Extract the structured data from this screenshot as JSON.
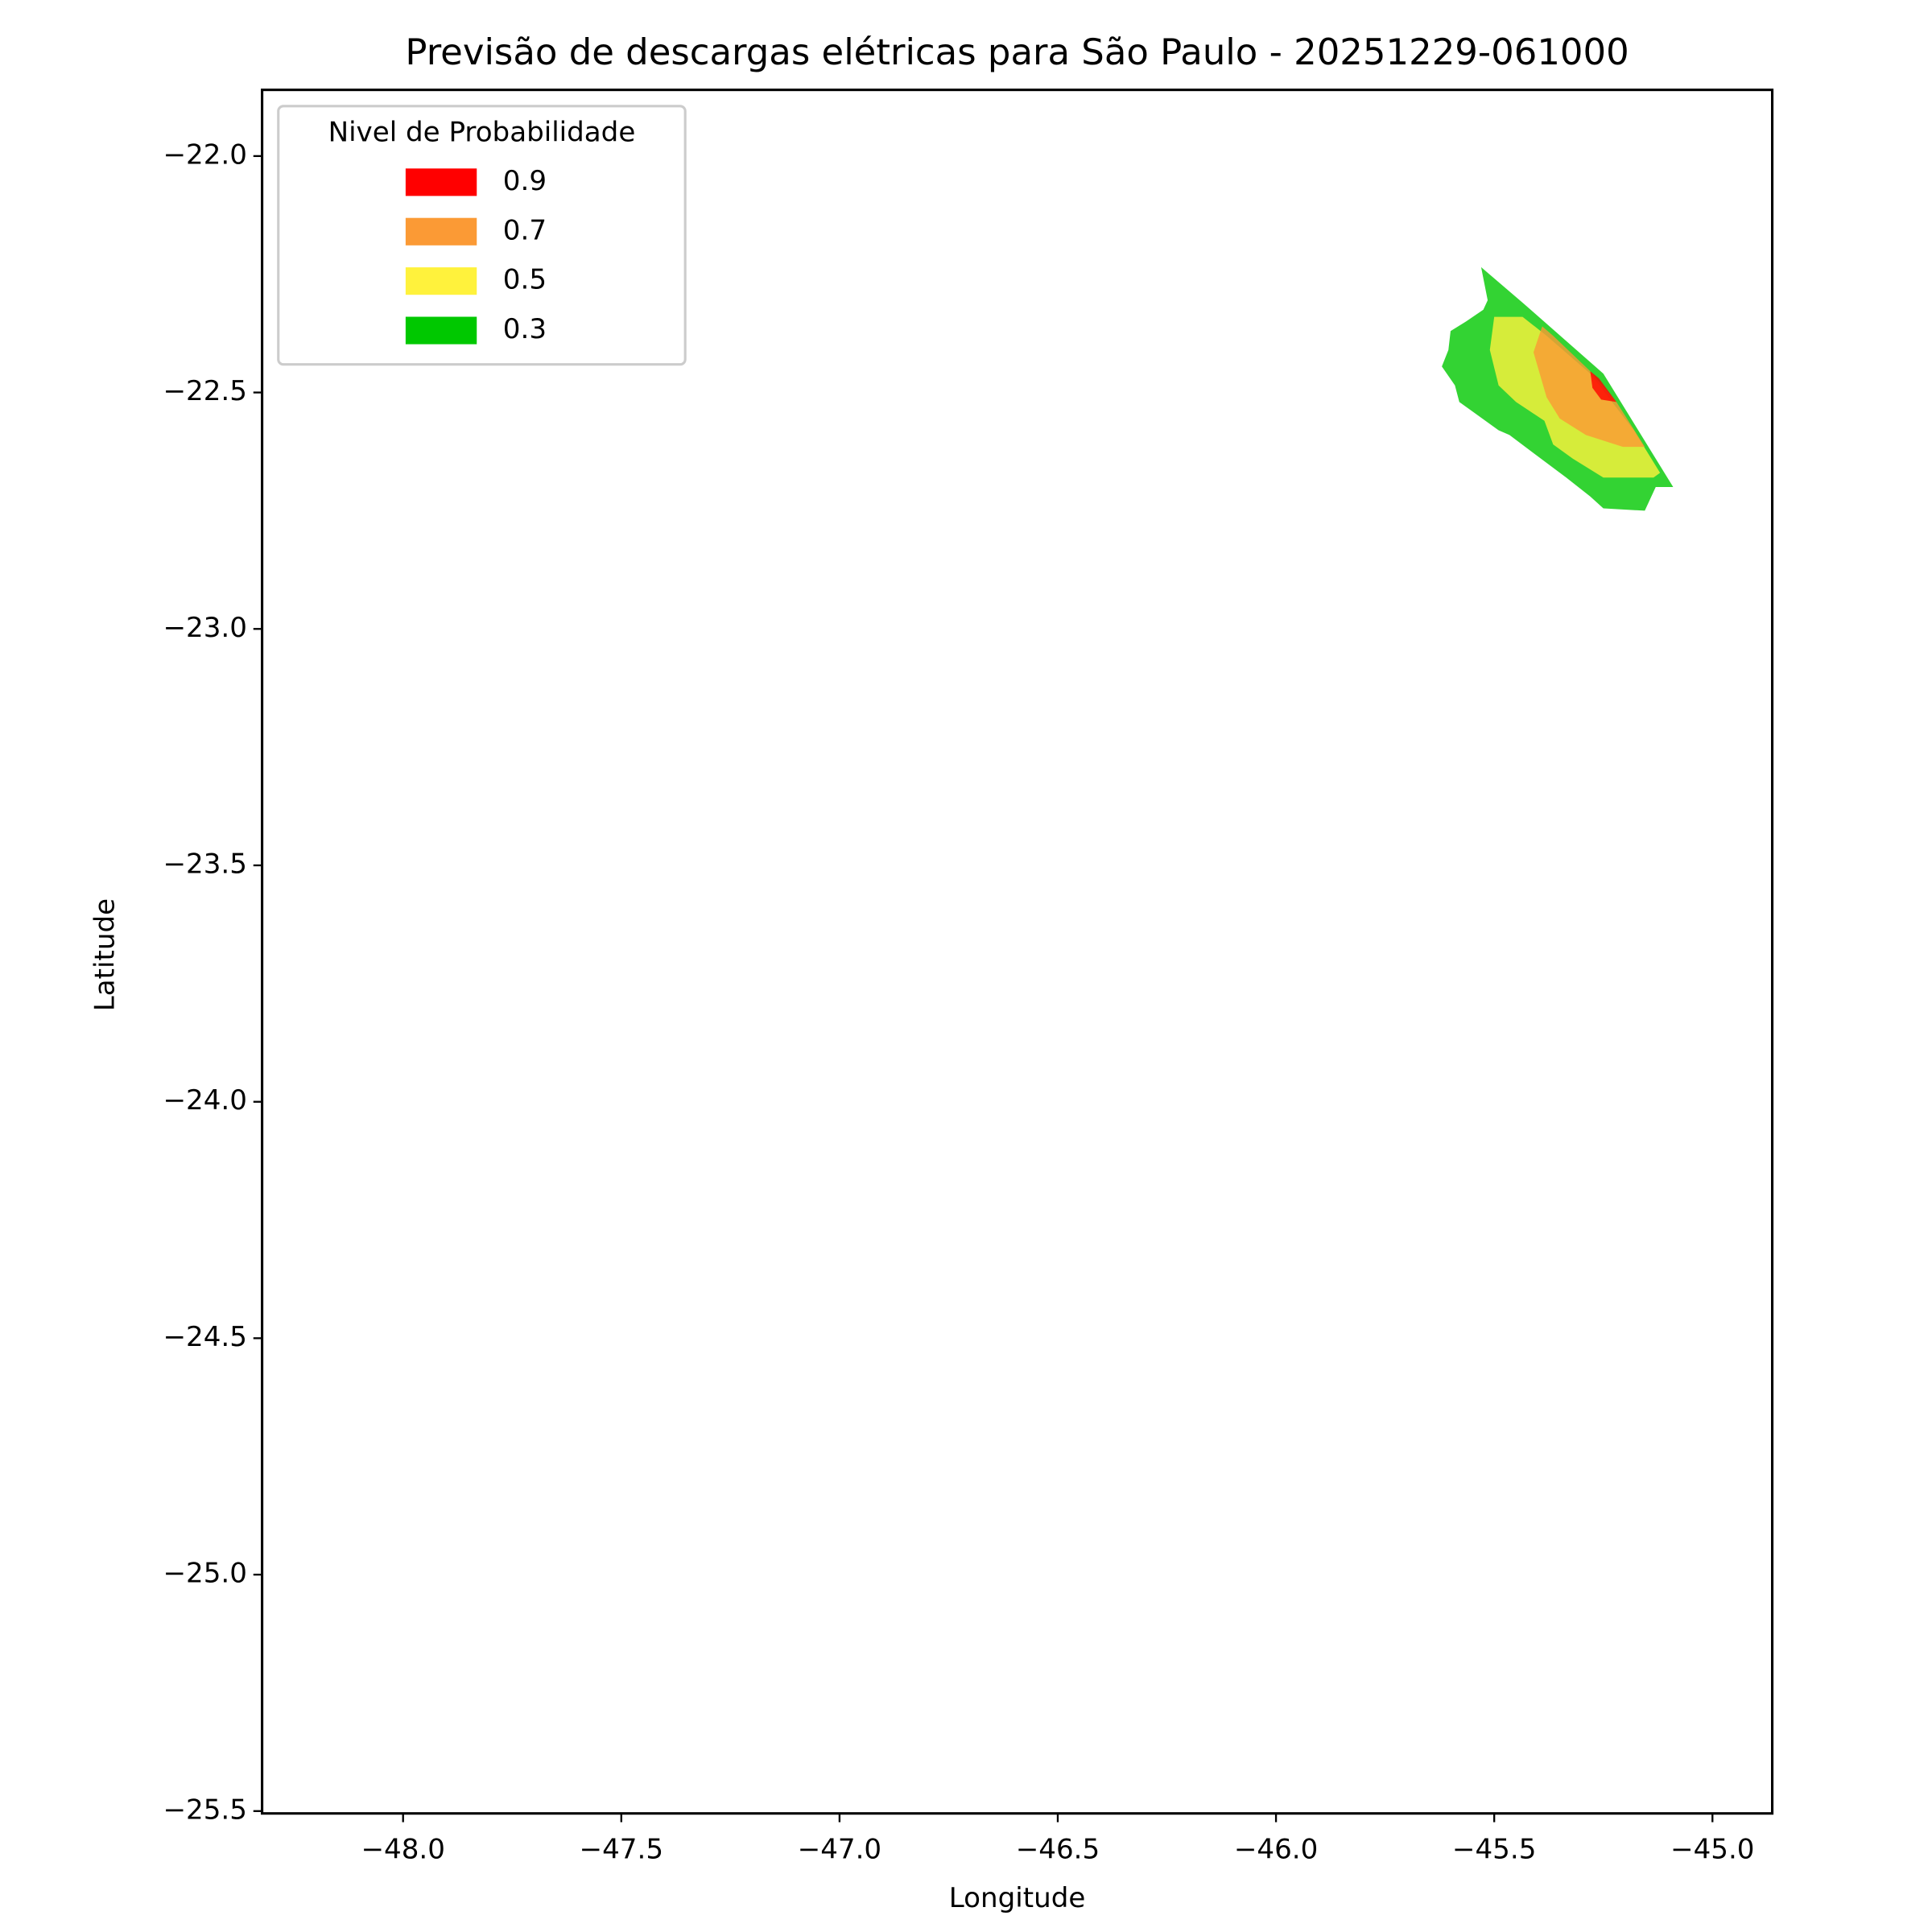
{
  "chart_data": {
    "type": "contour",
    "title": "Previsão de descargas elétricas para São Paulo - 20251229-061000",
    "x_label": "Longitude",
    "y_label": "Latitude",
    "xlim": [
      -48.323,
      -44.863
    ],
    "ylim": [
      -25.505,
      -21.86
    ],
    "xticks": [
      {
        "value": -48.0,
        "label": "−48.0"
      },
      {
        "value": -47.5,
        "label": "−47.5"
      },
      {
        "value": -47.0,
        "label": "−47.0"
      },
      {
        "value": -46.5,
        "label": "−46.5"
      },
      {
        "value": -46.0,
        "label": "−46.0"
      },
      {
        "value": -45.5,
        "label": "−45.5"
      },
      {
        "value": -45.0,
        "label": "−45.0"
      }
    ],
    "yticks": [
      {
        "value": -22.0,
        "label": "−22.0"
      },
      {
        "value": -22.5,
        "label": "−22.5"
      },
      {
        "value": -23.0,
        "label": "−23.0"
      },
      {
        "value": -23.5,
        "label": "−23.5"
      },
      {
        "value": -24.0,
        "label": "−24.0"
      },
      {
        "value": -24.5,
        "label": "−24.5"
      },
      {
        "value": -25.0,
        "label": "−25.0"
      },
      {
        "value": -25.5,
        "label": "−25.5"
      }
    ],
    "legend_title": "Nivel de Probabilidade",
    "legend_position": "upper left",
    "alpha": 0.8,
    "series": [
      {
        "name": "0.9",
        "color": "#ff0000",
        "x": [
          -45.28,
          -45.26,
          -45.22,
          -45.255,
          -45.275
        ],
        "y": [
          -22.455,
          -22.47,
          -22.52,
          -22.515,
          -22.49
        ]
      },
      {
        "name": "0.7",
        "color": "#fb9a35",
        "x": [
          -45.39,
          -45.365,
          -45.28,
          -45.22,
          -45.155,
          -45.205,
          -45.29,
          -45.35,
          -45.38,
          -45.41
        ],
        "y": [
          -22.36,
          -22.38,
          -22.455,
          -22.52,
          -22.615,
          -22.615,
          -22.59,
          -22.555,
          -22.51,
          -22.415
        ]
      },
      {
        "name": "0.5",
        "color": "#fff23c",
        "x": [
          -45.5,
          -45.435,
          -45.38,
          -45.28,
          -45.18,
          -45.12,
          -45.135,
          -45.25,
          -45.32,
          -45.365,
          -45.385,
          -45.45,
          -45.49,
          -45.51
        ],
        "y": [
          -22.34,
          -22.34,
          -22.38,
          -22.46,
          -22.58,
          -22.67,
          -22.68,
          -22.68,
          -22.64,
          -22.61,
          -22.56,
          -22.52,
          -22.485,
          -22.41
        ]
      },
      {
        "name": "0.3",
        "color": "#00c800",
        "x": [
          -45.53,
          -45.435,
          -45.25,
          -45.09,
          -45.13,
          -45.155,
          -45.25,
          -45.28,
          -45.335,
          -45.465,
          -45.49,
          -45.58,
          -45.59,
          -45.62,
          -45.605,
          -45.6,
          -45.565,
          -45.525,
          -45.515
        ],
        "y": [
          -22.235,
          -22.31,
          -22.46,
          -22.7,
          -22.7,
          -22.75,
          -22.745,
          -22.72,
          -22.68,
          -22.59,
          -22.58,
          -22.52,
          -22.485,
          -22.445,
          -22.41,
          -22.37,
          -22.35,
          -22.325,
          -22.305
        ]
      }
    ]
  }
}
